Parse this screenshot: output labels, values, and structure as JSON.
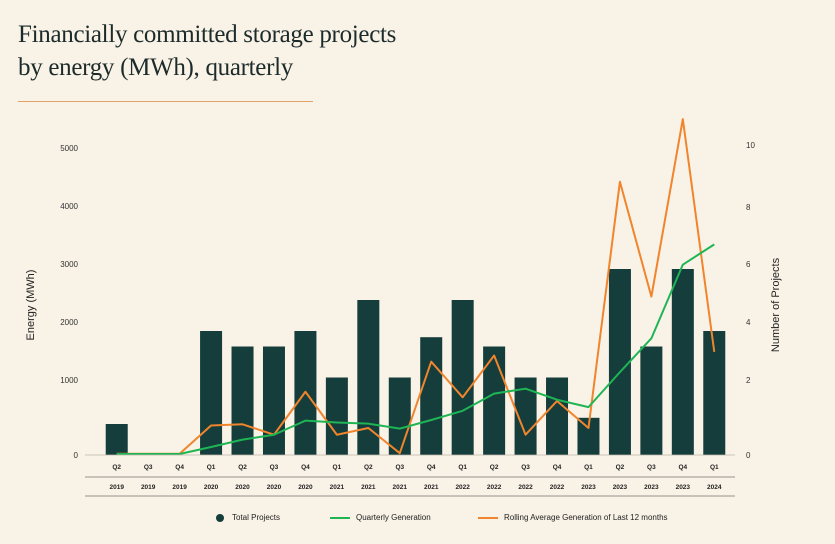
{
  "title_line1": "Financially committed storage projects",
  "title_line2": "by energy (MWh), quarterly",
  "chart_data": {
    "type": "bar",
    "categories_quarter": [
      "Q2",
      "Q3",
      "Q4",
      "Q1",
      "Q2",
      "Q3",
      "Q4",
      "Q1",
      "Q2",
      "Q3",
      "Q4",
      "Q1",
      "Q2",
      "Q3",
      "Q4",
      "Q1",
      "Q2",
      "Q3",
      "Q4",
      "Q1"
    ],
    "categories_year": [
      "2019",
      "2019",
      "2019",
      "2020",
      "2020",
      "2020",
      "2020",
      "2021",
      "2021",
      "2021",
      "2021",
      "2022",
      "2022",
      "2022",
      "2022",
      "2023",
      "2023",
      "2023",
      "2023",
      "2024"
    ],
    "ylabel_left": "Energy (MWh)",
    "ylabel_right": "Number of Projects",
    "yticks_left": [
      "5000",
      "4000",
      "3000",
      "2000",
      "1000",
      "0"
    ],
    "yticks_right": [
      "10",
      "8",
      "6",
      "4",
      "2",
      "0"
    ],
    "ylim_left": [
      0,
      5000
    ],
    "ylim_right": [
      0,
      10
    ],
    "series": [
      {
        "name": "Total Projects",
        "kind": "bar",
        "axis": "right",
        "color": "#143d3b",
        "values": [
          1,
          0,
          0,
          4,
          3.5,
          3.5,
          4,
          2.5,
          5,
          2.5,
          3.8,
          5,
          3.5,
          2.5,
          2.5,
          1.2,
          6,
          3.5,
          6,
          4
        ]
      },
      {
        "name": "Quarterly Generation",
        "kind": "line",
        "axis": "left",
        "color": "#1fb554",
        "values": [
          0,
          0,
          0,
          130,
          250,
          330,
          560,
          530,
          510,
          430,
          570,
          720,
          1000,
          1080,
          900,
          780,
          1350,
          1900,
          3100,
          3430
        ]
      },
      {
        "name": "Rolling Average Generation of Last 12 months",
        "kind": "line",
        "axis": "left",
        "color": "#f0852d",
        "values": [
          20,
          20,
          20,
          480,
          500,
          330,
          1030,
          330,
          440,
          30,
          1520,
          940,
          1620,
          330,
          880,
          440,
          4450,
          2580,
          5470,
          1680
        ]
      }
    ],
    "legend_position": "bottom"
  },
  "legend": {
    "total_projects": "Total Projects",
    "quarterly_generation": "Quarterly Generation",
    "rolling_average": "Rolling Average Generation of Last 12 months"
  }
}
